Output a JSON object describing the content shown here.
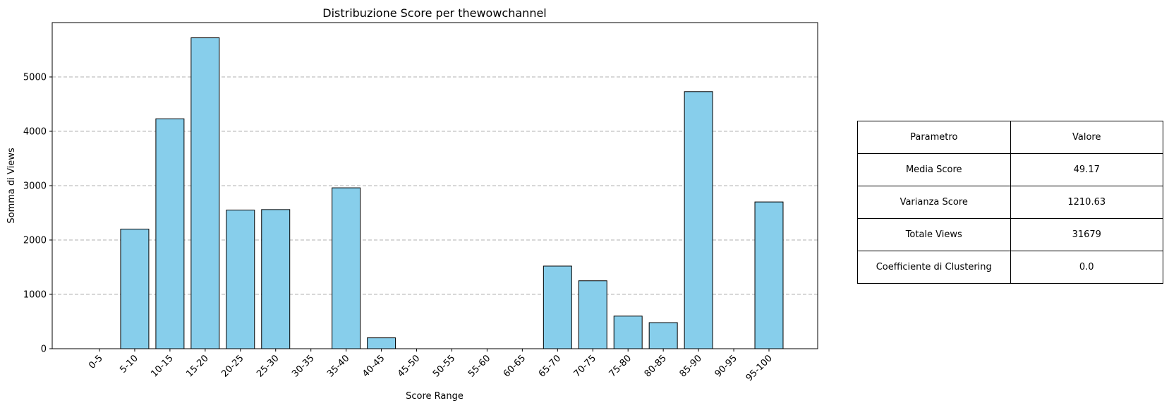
{
  "chart_data": {
    "type": "bar",
    "title": "Distribuzione Score per thewowchannel",
    "xlabel": "Score Range",
    "ylabel": "Somma di Views",
    "categories": [
      "0-5",
      "5-10",
      "10-15",
      "15-20",
      "20-25",
      "25-30",
      "30-35",
      "35-40",
      "40-45",
      "45-50",
      "50-55",
      "55-60",
      "60-65",
      "65-70",
      "70-75",
      "75-80",
      "80-85",
      "85-90",
      "90-95",
      "95-100"
    ],
    "values": [
      0,
      2200,
      4230,
      5720,
      2550,
      2560,
      0,
      2960,
      200,
      0,
      0,
      0,
      0,
      1520,
      1250,
      600,
      480,
      4730,
      0,
      2700
    ],
    "ylim": [
      0,
      6000
    ],
    "yticks": [
      0,
      1000,
      2000,
      3000,
      4000,
      5000
    ],
    "grid": "y-dashed",
    "bar_color": "#87CEEB",
    "edge_color": "#000000"
  },
  "stats_table": {
    "header": {
      "param": "Parametro",
      "value": "Valore"
    },
    "rows": [
      {
        "param": "Media Score",
        "value": "49.17"
      },
      {
        "param": "Varianza Score",
        "value": "1210.63"
      },
      {
        "param": "Totale Views",
        "value": "31679"
      },
      {
        "param": "Coefficiente di Clustering",
        "value": "0.0"
      }
    ]
  }
}
